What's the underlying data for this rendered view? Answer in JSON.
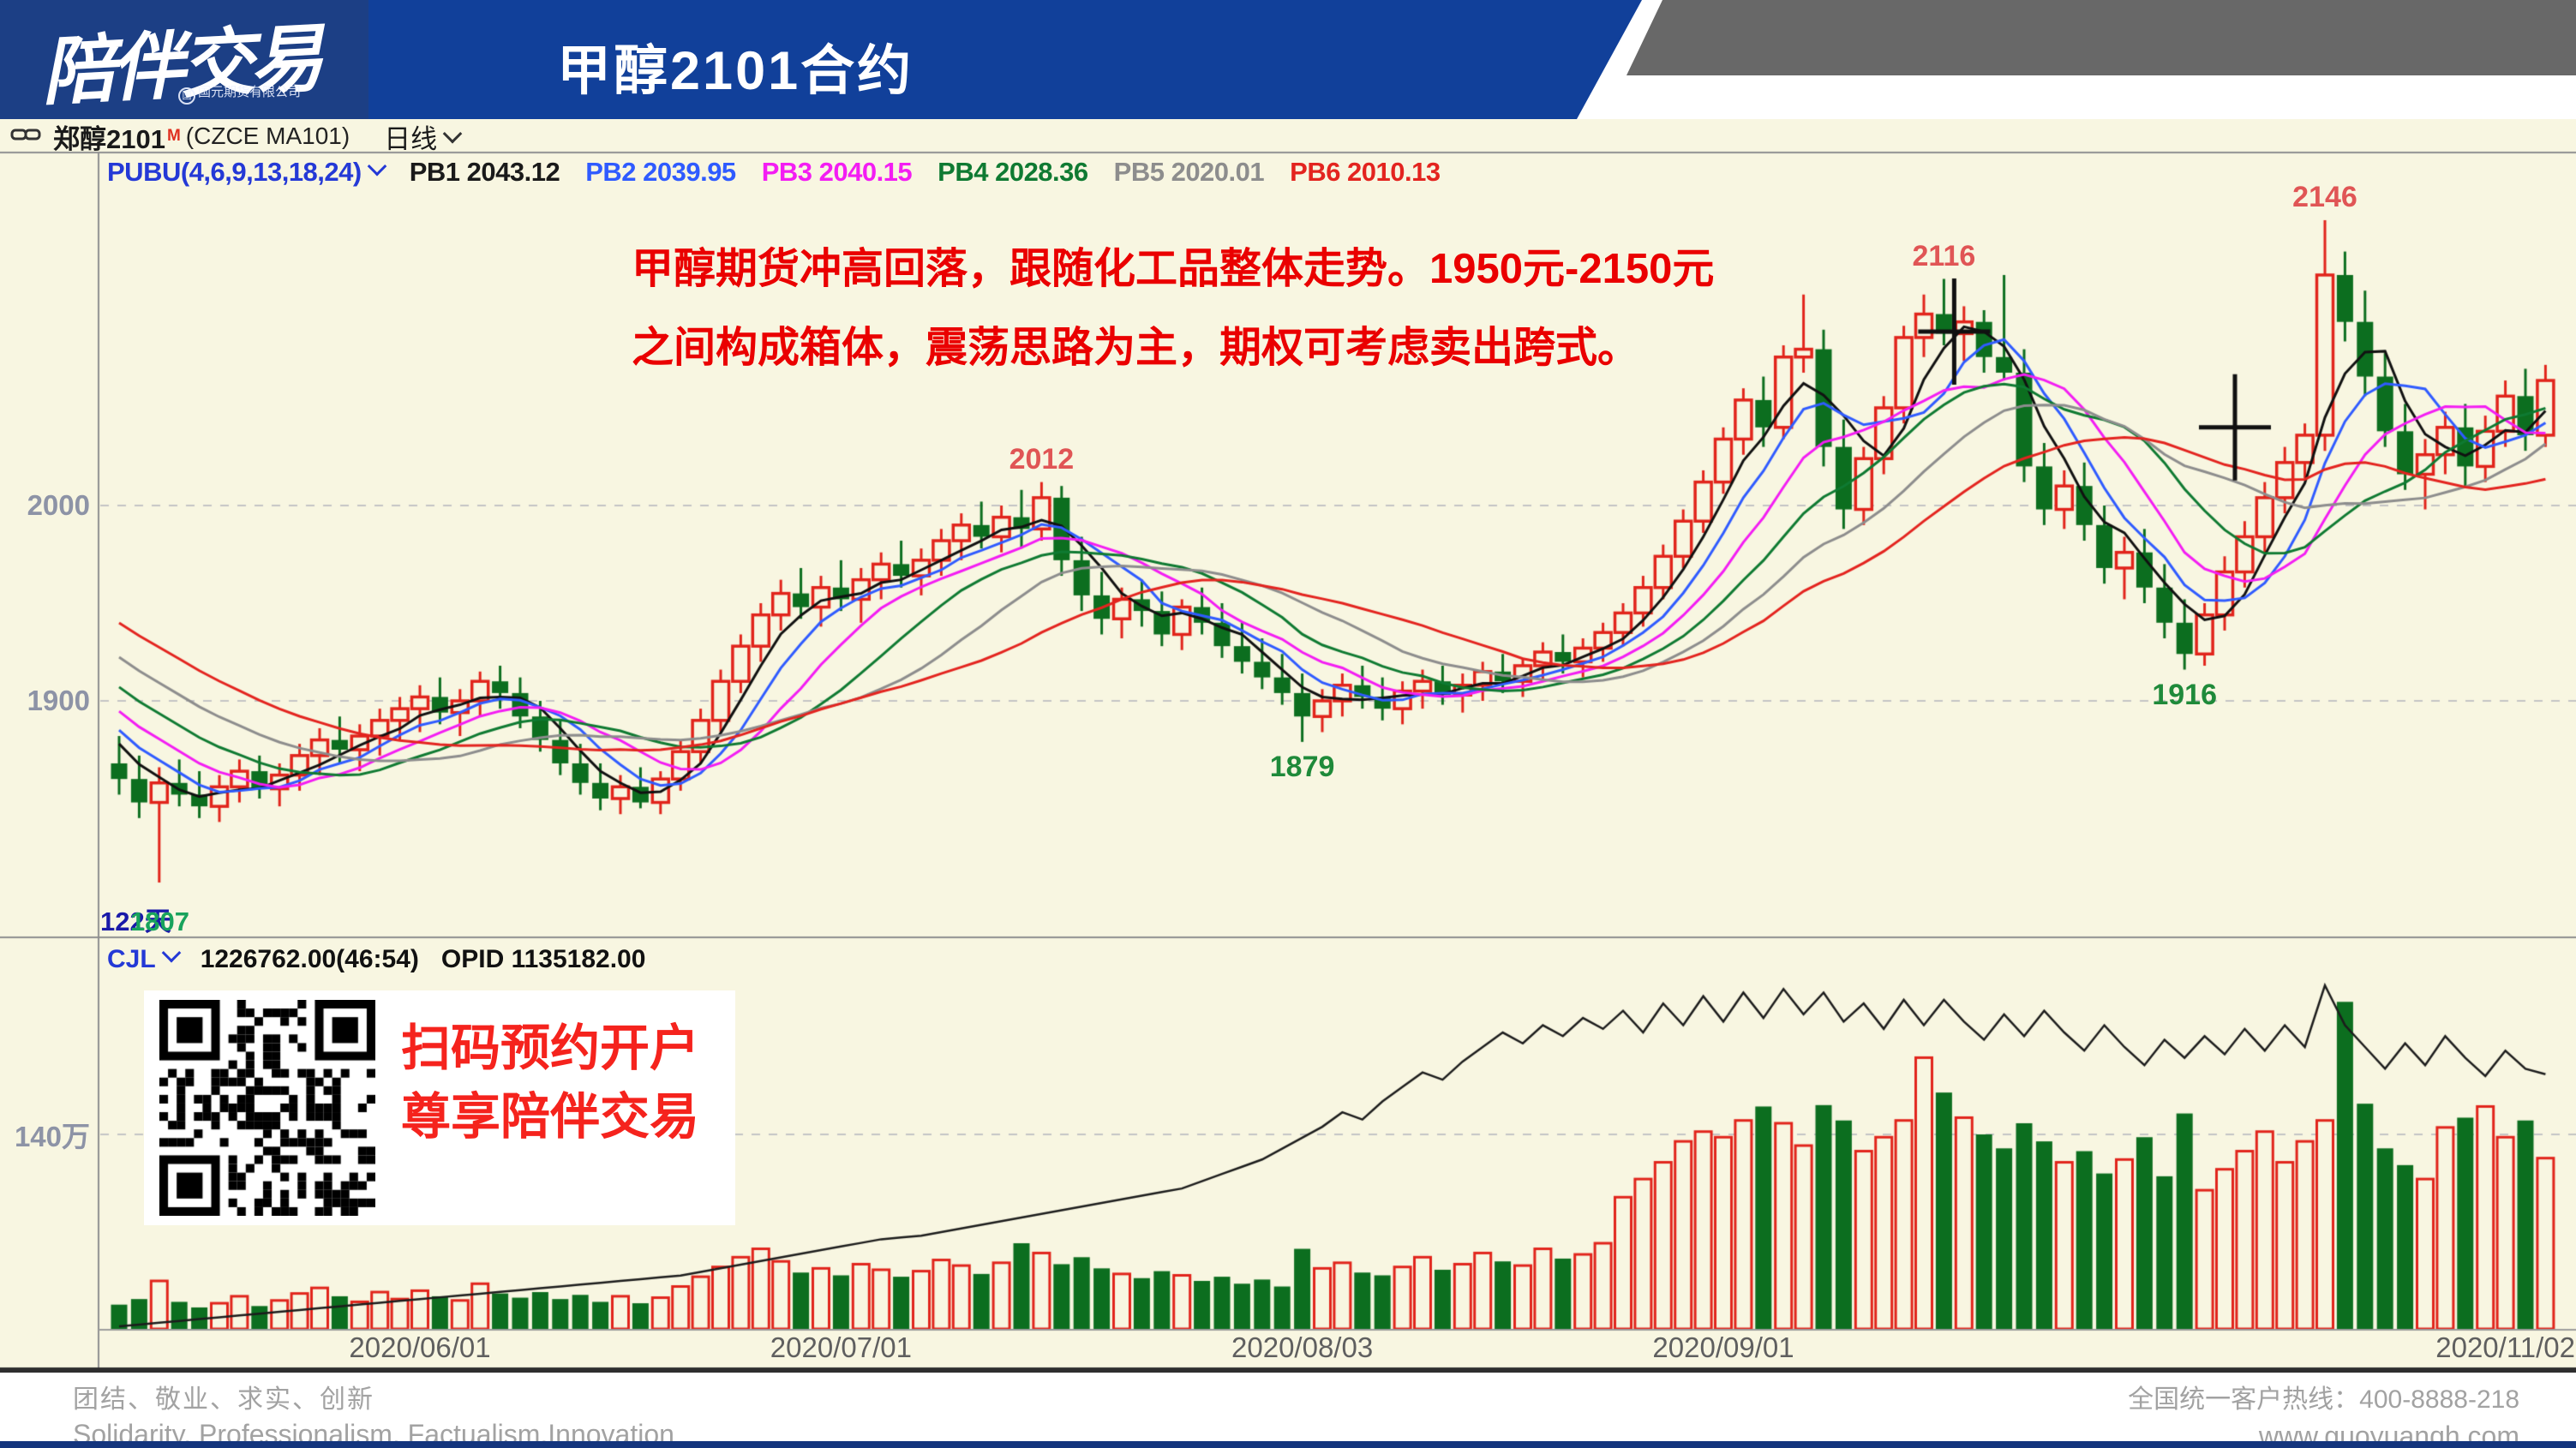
{
  "header": {
    "logo_text": "陪伴交易",
    "logo_subtext": "国元期货有限公司",
    "title": "甲醇2101合约"
  },
  "toolbar": {
    "instrument": "郑醇2101",
    "instrument_flag": "M",
    "instrument_code": "(CZCE MA101)",
    "period": "日线"
  },
  "indicator_bar": {
    "name": "PUBU(4,6,9,13,18,24)",
    "items": [
      {
        "label": "PB1",
        "value": "2043.12",
        "color": "#1a1a1a"
      },
      {
        "label": "PB2",
        "value": "2039.95",
        "color": "#2f5bff"
      },
      {
        "label": "PB3",
        "value": "2040.15",
        "color": "#f31df3"
      },
      {
        "label": "PB4",
        "value": "2028.36",
        "color": "#0f7a32"
      },
      {
        "label": "PB5",
        "value": "2020.01",
        "color": "#8d8d8d"
      },
      {
        "label": "PB6",
        "value": "2010.13",
        "color": "#e3241f"
      }
    ]
  },
  "annotation": {
    "line1": "甲醇期货冲高回落，跟随化工品整体走势。1950元-2150元",
    "line2": "之间构成箱体，震荡思路为主，期权可考虑卖出跨式。"
  },
  "volume_header": {
    "name": "CJL",
    "value": "1226762.00(46:54)",
    "opid": "OPID 1135182.00"
  },
  "qr_panel": {
    "line1": "扫码预约开户",
    "line2": "尊享陪伴交易"
  },
  "footer": {
    "left_cn": "团结、敬业、求实、创新",
    "left_en": "Solidarity, Professionalism, Factualism,Innovation",
    "right_line1": "全国统一客户热线：400-8888-218",
    "right_line2": "www.guoyuanqh.com"
  },
  "chart_data": {
    "type": "candlestick+volume",
    "bar_count_label": "122天",
    "low_start_label": "1807",
    "y_axis": {
      "labels": [
        {
          "text": "2000",
          "price": 2000
        },
        {
          "text": "1900",
          "price": 1900
        }
      ]
    },
    "volume_axis": {
      "label": "140万",
      "value_wan": 140
    },
    "x_axis": {
      "labels": [
        {
          "text": "2020/06/01",
          "index": 15
        },
        {
          "text": "2020/07/01",
          "index": 36
        },
        {
          "text": "2020/08/03",
          "index": 59
        },
        {
          "text": "2020/09/01",
          "index": 80
        },
        {
          "text": "2020/11/02",
          "index": 119
        }
      ]
    },
    "price_annotations": [
      {
        "text": "2012",
        "index": 46,
        "pos": "above",
        "color": "#e05555"
      },
      {
        "text": "1879",
        "index": 59,
        "pos": "below",
        "color": "#1f8a3a"
      },
      {
        "text": "2116",
        "index": 91,
        "pos": "above",
        "color": "#e05555"
      },
      {
        "text": "1916",
        "index": 103,
        "pos": "below",
        "color": "#1f8a3a"
      },
      {
        "text": "2146",
        "index": 110,
        "pos": "above",
        "color": "#e05555"
      }
    ],
    "cross_markers": [
      {
        "index": 91,
        "price": 2089
      },
      {
        "index": 105,
        "price": 2040
      }
    ],
    "indicators": {
      "periods": [
        4,
        6,
        9,
        13,
        18,
        24
      ],
      "colors": [
        "#111111",
        "#2f5bff",
        "#f31df3",
        "#0f7a32",
        "#8d8d8d",
        "#e3241f"
      ]
    },
    "pre_closes": [
      2010,
      2005,
      2000,
      1995,
      1990,
      1985,
      1980,
      1974,
      1968,
      1962,
      1956,
      1950,
      1944,
      1938,
      1932,
      1926,
      1920,
      1914,
      1908,
      1902,
      1896,
      1890,
      1884,
      1878
    ],
    "candles": [
      [
        1868,
        1882,
        1852,
        1860
      ],
      [
        1860,
        1872,
        1840,
        1848
      ],
      [
        1848,
        1866,
        1807,
        1858
      ],
      [
        1858,
        1870,
        1846,
        1852
      ],
      [
        1852,
        1864,
        1840,
        1846
      ],
      [
        1846,
        1862,
        1838,
        1856
      ],
      [
        1856,
        1870,
        1848,
        1864
      ],
      [
        1864,
        1872,
        1850,
        1855
      ],
      [
        1855,
        1868,
        1846,
        1862
      ],
      [
        1862,
        1878,
        1854,
        1872
      ],
      [
        1872,
        1886,
        1862,
        1880
      ],
      [
        1880,
        1892,
        1868,
        1875
      ],
      [
        1875,
        1888,
        1864,
        1882
      ],
      [
        1882,
        1896,
        1872,
        1890
      ],
      [
        1890,
        1902,
        1880,
        1896
      ],
      [
        1896,
        1908,
        1884,
        1902
      ],
      [
        1902,
        1912,
        1888,
        1894
      ],
      [
        1894,
        1906,
        1882,
        1900
      ],
      [
        1900,
        1915,
        1892,
        1910
      ],
      [
        1910,
        1918,
        1896,
        1904
      ],
      [
        1904,
        1912,
        1886,
        1892
      ],
      [
        1892,
        1900,
        1874,
        1880
      ],
      [
        1880,
        1890,
        1862,
        1868
      ],
      [
        1868,
        1878,
        1852,
        1858
      ],
      [
        1858,
        1868,
        1844,
        1850
      ],
      [
        1850,
        1862,
        1842,
        1856
      ],
      [
        1856,
        1866,
        1845,
        1848
      ],
      [
        1848,
        1864,
        1842,
        1860
      ],
      [
        1860,
        1880,
        1854,
        1874
      ],
      [
        1874,
        1896,
        1868,
        1890
      ],
      [
        1890,
        1916,
        1884,
        1910
      ],
      [
        1910,
        1934,
        1904,
        1928
      ],
      [
        1928,
        1950,
        1920,
        1944
      ],
      [
        1944,
        1962,
        1936,
        1955
      ],
      [
        1955,
        1968,
        1942,
        1948
      ],
      [
        1948,
        1964,
        1938,
        1958
      ],
      [
        1958,
        1972,
        1946,
        1952
      ],
      [
        1952,
        1968,
        1940,
        1962
      ],
      [
        1962,
        1976,
        1952,
        1970
      ],
      [
        1970,
        1982,
        1958,
        1964
      ],
      [
        1964,
        1978,
        1954,
        1972
      ],
      [
        1972,
        1988,
        1964,
        1982
      ],
      [
        1982,
        1996,
        1972,
        1990
      ],
      [
        1990,
        2002,
        1978,
        1984
      ],
      [
        1984,
        2000,
        1976,
        1994
      ],
      [
        1994,
        2008,
        1978,
        1988
      ],
      [
        1988,
        2012,
        1982,
        2004
      ],
      [
        2004,
        2010,
        1964,
        1972
      ],
      [
        1972,
        1984,
        1946,
        1954
      ],
      [
        1954,
        1966,
        1934,
        1942
      ],
      [
        1942,
        1958,
        1932,
        1952
      ],
      [
        1952,
        1962,
        1938,
        1946
      ],
      [
        1946,
        1956,
        1928,
        1934
      ],
      [
        1934,
        1952,
        1926,
        1948
      ],
      [
        1948,
        1958,
        1934,
        1940
      ],
      [
        1940,
        1950,
        1922,
        1928
      ],
      [
        1928,
        1940,
        1914,
        1920
      ],
      [
        1920,
        1932,
        1906,
        1912
      ],
      [
        1912,
        1924,
        1898,
        1904
      ],
      [
        1904,
        1914,
        1879,
        1892
      ],
      [
        1892,
        1906,
        1884,
        1900
      ],
      [
        1900,
        1914,
        1892,
        1908
      ],
      [
        1908,
        1918,
        1896,
        1902
      ],
      [
        1902,
        1912,
        1890,
        1896
      ],
      [
        1896,
        1910,
        1888,
        1905
      ],
      [
        1905,
        1916,
        1896,
        1910
      ],
      [
        1910,
        1918,
        1898,
        1903
      ],
      [
        1903,
        1914,
        1894,
        1908
      ],
      [
        1908,
        1920,
        1900,
        1915
      ],
      [
        1915,
        1924,
        1904,
        1910
      ],
      [
        1910,
        1922,
        1902,
        1918
      ],
      [
        1918,
        1930,
        1910,
        1925
      ],
      [
        1925,
        1934,
        1914,
        1920
      ],
      [
        1920,
        1932,
        1912,
        1927
      ],
      [
        1927,
        1940,
        1920,
        1935
      ],
      [
        1935,
        1950,
        1928,
        1945
      ],
      [
        1945,
        1964,
        1938,
        1958
      ],
      [
        1958,
        1980,
        1952,
        1974
      ],
      [
        1974,
        1998,
        1968,
        1992
      ],
      [
        1992,
        2018,
        1986,
        2012
      ],
      [
        2012,
        2040,
        2006,
        2034
      ],
      [
        2034,
        2060,
        2026,
        2054
      ],
      [
        2054,
        2066,
        2030,
        2040
      ],
      [
        2040,
        2082,
        2034,
        2076
      ],
      [
        2076,
        2108,
        2068,
        2080
      ],
      [
        2080,
        2090,
        2020,
        2030
      ],
      [
        2030,
        2044,
        1988,
        1998
      ],
      [
        1998,
        2030,
        1990,
        2024
      ],
      [
        2024,
        2056,
        2016,
        2050
      ],
      [
        2050,
        2092,
        2042,
        2086
      ],
      [
        2086,
        2108,
        2076,
        2098
      ],
      [
        2098,
        2116,
        2082,
        2088
      ],
      [
        2088,
        2102,
        2074,
        2094
      ],
      [
        2094,
        2100,
        2068,
        2076
      ],
      [
        2076,
        2118,
        2064,
        2068
      ],
      [
        2068,
        2080,
        2012,
        2020
      ],
      [
        2020,
        2032,
        1990,
        1998
      ],
      [
        1998,
        2018,
        1988,
        2010
      ],
      [
        2010,
        2022,
        1982,
        1990
      ],
      [
        1990,
        2000,
        1960,
        1968
      ],
      [
        1968,
        1984,
        1952,
        1976
      ],
      [
        1976,
        1988,
        1950,
        1958
      ],
      [
        1958,
        1970,
        1932,
        1940
      ],
      [
        1940,
        1952,
        1916,
        1924
      ],
      [
        1924,
        1950,
        1918,
        1944
      ],
      [
        1944,
        1974,
        1936,
        1966
      ],
      [
        1966,
        1992,
        1958,
        1984
      ],
      [
        1984,
        2012,
        1976,
        2004
      ],
      [
        2004,
        2030,
        1996,
        2022
      ],
      [
        2022,
        2042,
        2014,
        2036
      ],
      [
        2036,
        2146,
        2028,
        2118
      ],
      [
        2118,
        2130,
        2084,
        2094
      ],
      [
        2094,
        2110,
        2056,
        2066
      ],
      [
        2066,
        2078,
        2030,
        2038
      ],
      [
        2038,
        2052,
        2008,
        2016
      ],
      [
        2016,
        2034,
        1998,
        2026
      ],
      [
        2026,
        2048,
        2016,
        2040
      ],
      [
        2040,
        2052,
        2010,
        2020
      ],
      [
        2020,
        2046,
        2012,
        2038
      ],
      [
        2038,
        2064,
        2030,
        2056
      ],
      [
        2056,
        2070,
        2028,
        2036
      ],
      [
        2036,
        2072,
        2030,
        2064
      ]
    ],
    "volume_wan": [
      18,
      22,
      35,
      20,
      16,
      19,
      24,
      17,
      21,
      26,
      30,
      24,
      20,
      27,
      22,
      28,
      24,
      21,
      33,
      26,
      23,
      27,
      22,
      25,
      20,
      24,
      19,
      23,
      31,
      38,
      45,
      52,
      58,
      49,
      41,
      44,
      39,
      47,
      43,
      38,
      42,
      50,
      46,
      40,
      48,
      62,
      55,
      47,
      52,
      44,
      40,
      37,
      42,
      39,
      35,
      38,
      33,
      36,
      31,
      58,
      44,
      48,
      41,
      39,
      45,
      52,
      43,
      47,
      55,
      49,
      46,
      58,
      51,
      54,
      62,
      95,
      108,
      120,
      135,
      142,
      138,
      150,
      160,
      148,
      132,
      161,
      150,
      128,
      138,
      150,
      195,
      170,
      152,
      140,
      130,
      148,
      135,
      120,
      128,
      112,
      122,
      138,
      110,
      155,
      100,
      115,
      128,
      142,
      120,
      135,
      150,
      235,
      162,
      130,
      118,
      108,
      145,
      152,
      160,
      138,
      150,
      123
    ],
    "open_interest_wan": [
      44,
      44.5,
      45,
      45.5,
      46,
      46.5,
      47,
      47.5,
      48,
      48.5,
      49,
      49.5,
      50,
      50.5,
      51,
      51.5,
      52,
      52.5,
      53,
      53.5,
      54,
      54.5,
      55,
      55.5,
      56,
      56.5,
      57,
      57.5,
      58,
      59,
      60,
      61,
      62,
      63,
      64,
      65,
      66,
      67,
      68,
      68.5,
      69,
      70,
      71,
      72,
      73,
      74,
      75,
      76,
      77,
      78,
      79,
      80,
      81,
      82,
      84,
      86,
      88,
      90,
      93,
      96,
      99,
      103,
      101,
      106,
      110,
      114,
      112,
      117,
      121,
      125,
      122,
      127,
      124,
      129,
      126,
      131,
      125,
      133,
      127,
      135,
      128,
      136,
      129,
      137,
      130,
      136,
      128,
      133,
      126,
      134,
      127,
      134,
      128,
      123,
      130,
      124,
      131,
      125,
      120,
      127,
      121,
      116,
      123,
      118,
      124,
      119,
      126,
      120,
      127,
      121,
      138,
      127,
      121,
      115,
      122,
      116,
      124,
      118,
      113,
      120,
      115,
      113.5
    ],
    "colors": {
      "up": "#e1241b",
      "down": "#0c6e1f",
      "oi_line": "#1c1c1c",
      "grid": "#c4c4c4",
      "background": "#f8f6e1"
    }
  }
}
